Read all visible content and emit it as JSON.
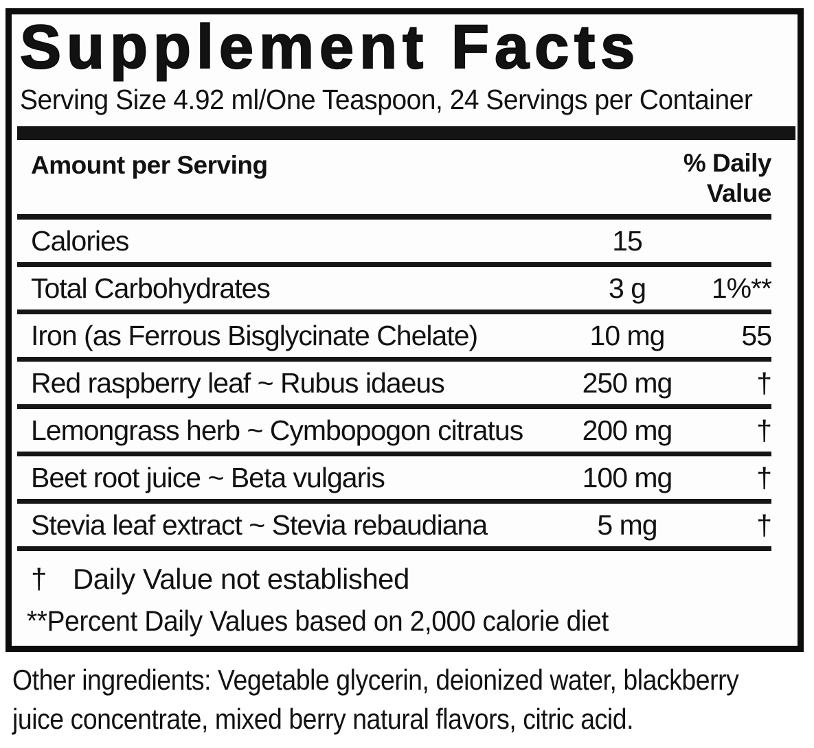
{
  "label": {
    "title": "Supplement Facts",
    "serving_info": "Serving Size 4.92 ml/One Teaspoon, 24 Servings per Container",
    "columns": {
      "amount_header": "Amount per Serving",
      "dv_header_line1": "% Daily",
      "dv_header_line2": "Value"
    },
    "rows": [
      {
        "name": "Calories",
        "amount": "15",
        "dv": ""
      },
      {
        "name": "Total Carbohydrates",
        "amount": "3 g",
        "dv": "1%**"
      },
      {
        "name": "Iron (as Ferrous Bisglycinate Chelate)",
        "amount": "10 mg",
        "dv": "55"
      },
      {
        "name": "Red raspberry leaf ~ Rubus idaeus",
        "amount": "250 mg",
        "dv": "†"
      },
      {
        "name": "Lemongrass herb ~ Cymbopogon citratus",
        "amount": "200 mg",
        "dv": "†"
      },
      {
        "name": "Beet root juice ~ Beta vulgaris",
        "amount": "100 mg",
        "dv": "†"
      },
      {
        "name": "Stevia leaf extract ~ Stevia rebaudiana",
        "amount": "5 mg",
        "dv": "†"
      }
    ],
    "footnotes": {
      "dagger_symbol": "†",
      "dagger_text": "Daily Value not established",
      "percent_note": "**Percent Daily Values based on 2,000 calorie diet"
    },
    "other_ingredients": {
      "line1": "Other ingredients: Vegetable glycerin, deionized water, blackberry",
      "line2": "juice concentrate, mixed berry natural flavors, citric acid."
    },
    "colors": {
      "text": "#121212",
      "rule": "#161616",
      "thick_bar": "#141414",
      "border": "#0d0d0d",
      "background": "#ffffff"
    }
  }
}
